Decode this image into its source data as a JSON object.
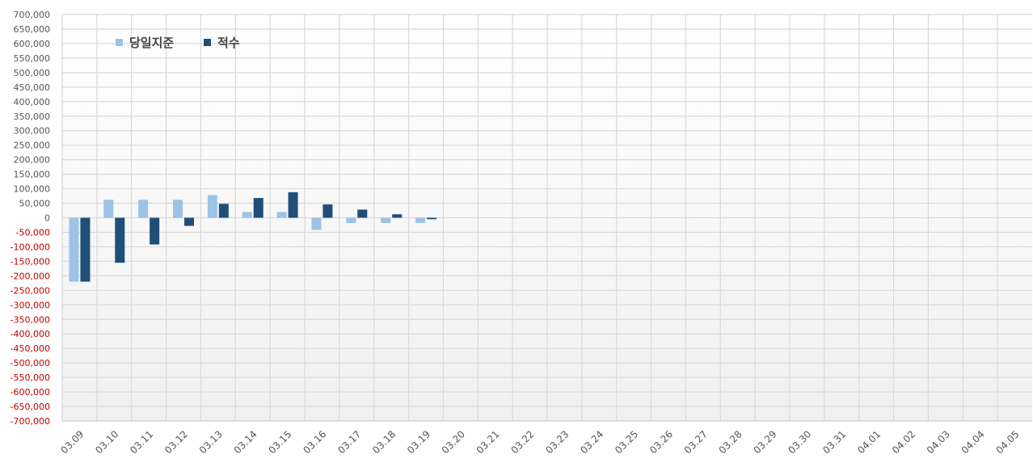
{
  "chart_data": {
    "type": "bar",
    "title": "",
    "xlabel": "",
    "ylabel": "",
    "ylim": [
      -700000,
      700000
    ],
    "ytick_step": 50000,
    "grid": true,
    "legend_position": "top-left",
    "categories": [
      "03.09",
      "03.10",
      "03.11",
      "03.12",
      "03.13",
      "03.14",
      "03.15",
      "03.16",
      "03.17",
      "03.18",
      "03.19",
      "03.20",
      "03.21",
      "03.22",
      "03.23",
      "03.24",
      "03.25",
      "03.26",
      "03.27",
      "03.28",
      "03.29",
      "03.30",
      "03.31",
      "04.01",
      "04.02",
      "04.03",
      "04.04",
      "04.05"
    ],
    "series": [
      {
        "name": "당일지준",
        "color": "#9dc3e6",
        "values": [
          -220000,
          62000,
          62000,
          62000,
          78000,
          20000,
          20000,
          -42000,
          -18000,
          -18000,
          -18000,
          null,
          null,
          null,
          null,
          null,
          null,
          null,
          null,
          null,
          null,
          null,
          null,
          null,
          null,
          null,
          null,
          null
        ]
      },
      {
        "name": "적수",
        "color": "#1f4e79",
        "values": [
          -220000,
          -155000,
          -92000,
          -28000,
          48000,
          68000,
          88000,
          46000,
          28000,
          12000,
          -5000,
          null,
          null,
          null,
          null,
          null,
          null,
          null,
          null,
          null,
          null,
          null,
          null,
          null,
          null,
          null,
          null,
          null
        ]
      }
    ],
    "colors": {
      "negative_tick": "#c00000",
      "positive_tick": "#555555",
      "grid": "#d9d9d9",
      "axis": "#cccccc"
    }
  }
}
